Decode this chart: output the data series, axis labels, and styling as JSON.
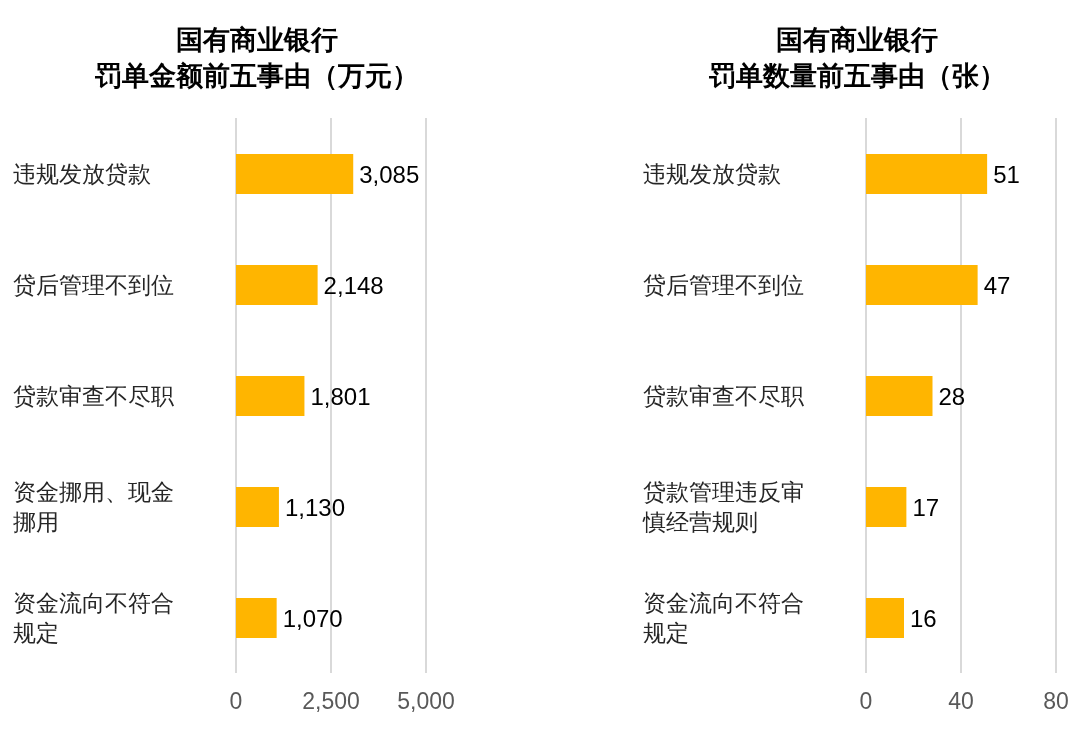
{
  "chart_data": [
    {
      "type": "bar",
      "orientation": "horizontal",
      "title": "国有商业银行",
      "subtitle": "罚单金额前五事由（万元）",
      "categories": [
        "违规发放贷款",
        "贷后管理不到位",
        "贷款审查不尽职",
        "资金挪用、现金挪用",
        "资金流向不符合规定"
      ],
      "values": [
        3085,
        2148,
        1801,
        1130,
        1070
      ],
      "value_labels": [
        "3,085",
        "2,148",
        "1,801",
        "1,130",
        "1,070"
      ],
      "color": "#ffb500",
      "xlim": [
        0,
        5000
      ],
      "xticks": [
        0,
        {
          "value": 2500,
          "label": "2,500"
        },
        {
          "value": 5000,
          "label": "5,000"
        }
      ],
      "grid": "x"
    },
    {
      "type": "bar",
      "orientation": "horizontal",
      "title": "国有商业银行",
      "subtitle": "罚单数量前五事由（张）",
      "categories": [
        "违规发放贷款",
        "贷后管理不到位",
        "贷款审查不尽职",
        "贷款管理违反审慎经营规则",
        "资金流向不符合规定"
      ],
      "values": [
        51,
        47,
        28,
        17,
        16
      ],
      "data_labels": true,
      "color": "#ffb500",
      "xlim": [
        0,
        80
      ],
      "xticks": [
        0,
        40,
        80
      ],
      "grid": "x"
    }
  ]
}
